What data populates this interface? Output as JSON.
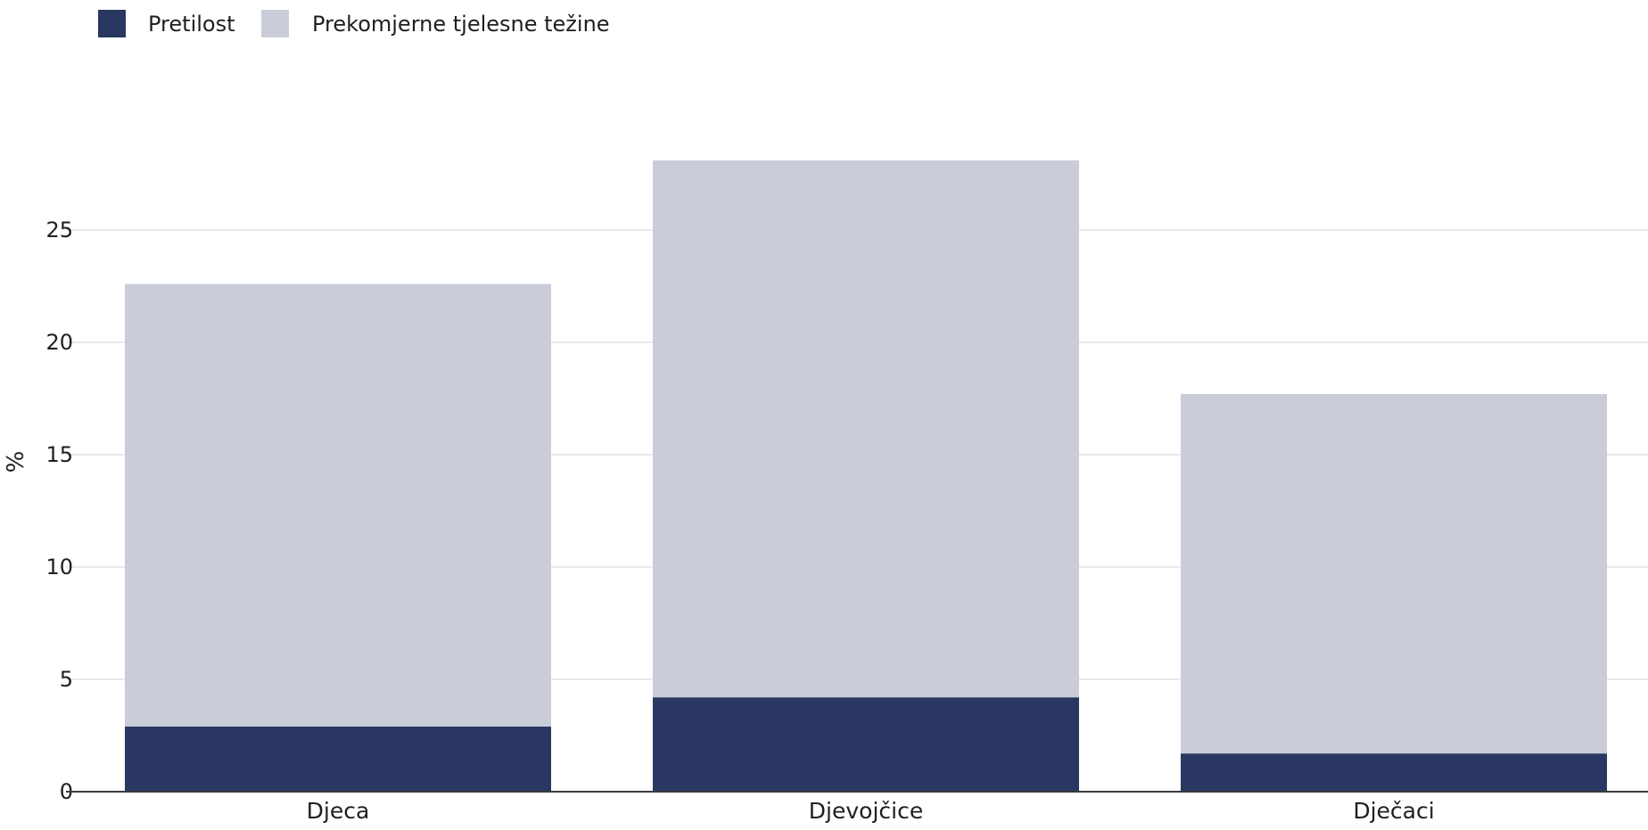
{
  "chart_data": {
    "type": "bar",
    "stacked": true,
    "categories": [
      "Djeca",
      "Djevojčice",
      "Dječaci"
    ],
    "series": [
      {
        "name": "Pretilost",
        "values": [
          2.9,
          4.2,
          1.7
        ],
        "color": "#2b3763"
      },
      {
        "name": "Prekomjerne tjelesne težine",
        "values": [
          19.7,
          23.9,
          16.0
        ],
        "color": "#cacdd9"
      }
    ],
    "title": "",
    "xlabel": "",
    "ylabel": "%",
    "ylim": [
      0,
      28.5
    ],
    "yticks": [
      0,
      5,
      10,
      15,
      20,
      25
    ],
    "grid": true,
    "legend": "top-left"
  }
}
